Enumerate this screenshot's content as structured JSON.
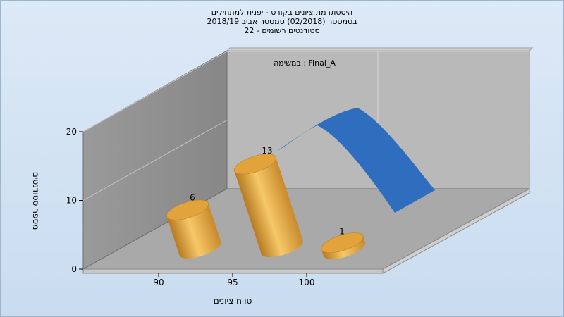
{
  "chart_data": {
    "type": "bar",
    "title_lines": [
      "היסטוגרמת ציונים בקורס - יפנית למתחילים",
      "בסמסטר  (02/2018)  סמסטר אביב 2018/19",
      "סטודנטים רשומים - 22"
    ],
    "series_label": "במשימה : Final_A",
    "xlabel": "טווח ציונים",
    "ylabel": "מספר סטודנטים",
    "categories": [
      "90",
      "95",
      "100"
    ],
    "values": [
      6,
      13,
      1
    ],
    "ylim": [
      0,
      20
    ],
    "yticks": [
      0,
      10,
      20
    ],
    "grid": true,
    "bar_color": "#e2a43a",
    "curve_color": "#2f6ebf"
  }
}
